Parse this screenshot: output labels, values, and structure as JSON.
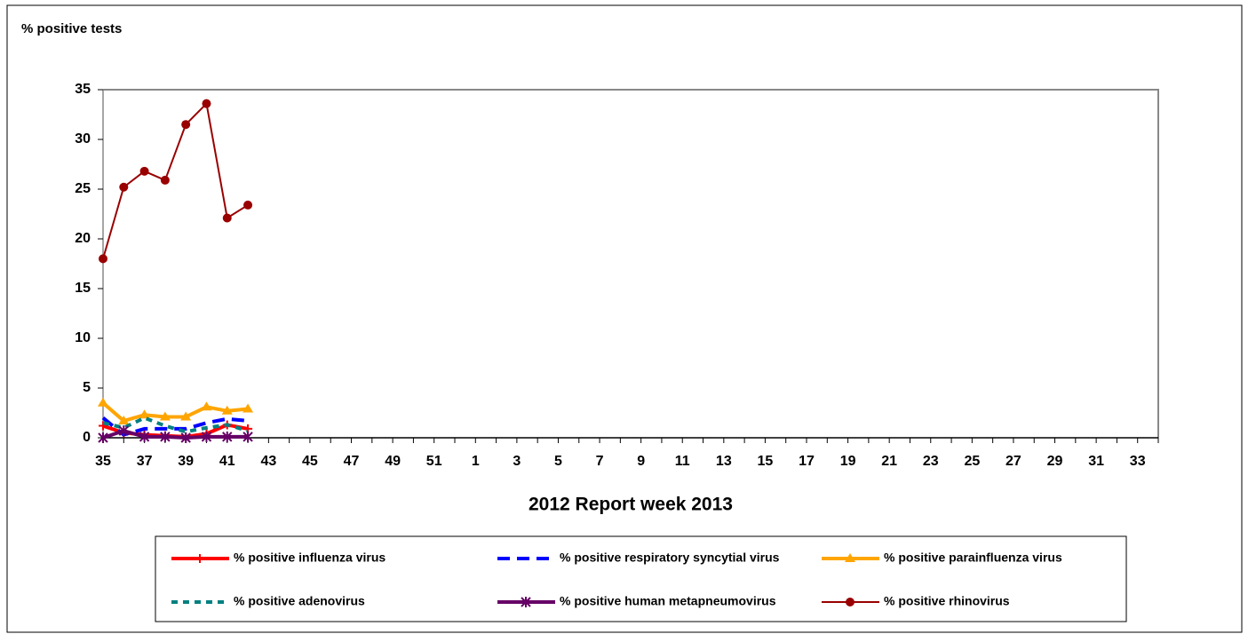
{
  "chart_data": {
    "type": "line",
    "y_title": "% positive tests",
    "x_title": "2012 Report week   2013",
    "categories": [
      "35",
      null,
      "37",
      null,
      "39",
      null,
      "41",
      null,
      "43",
      null,
      "45",
      null,
      "47",
      null,
      "49",
      null,
      "51",
      null,
      "1",
      null,
      "3",
      null,
      "5",
      null,
      "7",
      null,
      "9",
      null,
      "11",
      null,
      "13",
      null,
      "15",
      null,
      "17",
      null,
      "19",
      null,
      "21",
      null,
      "23",
      null,
      "25",
      null,
      "27",
      null,
      "29",
      null,
      "31",
      null,
      "33",
      null
    ],
    "ylim": [
      0,
      35
    ],
    "yticks": [
      0,
      5,
      10,
      15,
      20,
      25,
      30,
      35
    ],
    "legend_position": "bottom",
    "series": [
      {
        "name": "% positive influenza virus",
        "color": "#ff0000",
        "marker": "plus",
        "line_style": "solid",
        "values": [
          1.2,
          0.5,
          0.3,
          0.2,
          0.1,
          0.4,
          1.3,
          0.9,
          null,
          null,
          null,
          null,
          null,
          null,
          null,
          null,
          null,
          null,
          null,
          null,
          null,
          null,
          null,
          null,
          null,
          null,
          null,
          null,
          null,
          null,
          null,
          null,
          null,
          null,
          null,
          null,
          null,
          null,
          null,
          null,
          null,
          null,
          null,
          null,
          null,
          null,
          null,
          null,
          null,
          null,
          null,
          null
        ]
      },
      {
        "name": "% positive respiratory syncytial virus",
        "color": "#0000ff",
        "marker": "none",
        "line_style": "dashed",
        "values": [
          2.0,
          0.3,
          0.9,
          0.9,
          0.9,
          1.5,
          1.9,
          1.7,
          null,
          null,
          null,
          null,
          null,
          null,
          null,
          null,
          null,
          null,
          null,
          null,
          null,
          null,
          null,
          null,
          null,
          null,
          null,
          null,
          null,
          null,
          null,
          null,
          null,
          null,
          null,
          null,
          null,
          null,
          null,
          null,
          null,
          null,
          null,
          null,
          null,
          null,
          null,
          null,
          null,
          null,
          null,
          null
        ]
      },
      {
        "name": "% positive parainfluenza virus",
        "color": "#ffa500",
        "marker": "triangle",
        "line_style": "solid",
        "values": [
          3.5,
          1.7,
          2.3,
          2.1,
          2.1,
          3.1,
          2.7,
          2.9,
          null,
          null,
          null,
          null,
          null,
          null,
          null,
          null,
          null,
          null,
          null,
          null,
          null,
          null,
          null,
          null,
          null,
          null,
          null,
          null,
          null,
          null,
          null,
          null,
          null,
          null,
          null,
          null,
          null,
          null,
          null,
          null,
          null,
          null,
          null,
          null,
          null,
          null,
          null,
          null,
          null,
          null,
          null,
          null
        ]
      },
      {
        "name": "% positive adenovirus",
        "color": "#008080",
        "marker": "none",
        "line_style": "dotted",
        "values": [
          1.5,
          1.0,
          2.0,
          1.2,
          0.6,
          1.0,
          1.3,
          0.7,
          null,
          null,
          null,
          null,
          null,
          null,
          null,
          null,
          null,
          null,
          null,
          null,
          null,
          null,
          null,
          null,
          null,
          null,
          null,
          null,
          null,
          null,
          null,
          null,
          null,
          null,
          null,
          null,
          null,
          null,
          null,
          null,
          null,
          null,
          null,
          null,
          null,
          null,
          null,
          null,
          null,
          null,
          null,
          null
        ]
      },
      {
        "name": "% positive human metapneumovirus",
        "color": "#660066",
        "marker": "star",
        "line_style": "solid",
        "values": [
          0.0,
          0.7,
          0.1,
          0.1,
          0.0,
          0.1,
          0.1,
          0.1,
          null,
          null,
          null,
          null,
          null,
          null,
          null,
          null,
          null,
          null,
          null,
          null,
          null,
          null,
          null,
          null,
          null,
          null,
          null,
          null,
          null,
          null,
          null,
          null,
          null,
          null,
          null,
          null,
          null,
          null,
          null,
          null,
          null,
          null,
          null,
          null,
          null,
          null,
          null,
          null,
          null,
          null,
          null,
          null
        ]
      },
      {
        "name": "% positive rhinovirus",
        "color": "#990000",
        "marker": "circle",
        "line_style": "thin",
        "values": [
          18.0,
          25.2,
          26.8,
          25.9,
          31.5,
          33.6,
          22.1,
          23.4,
          null,
          null,
          null,
          null,
          null,
          null,
          null,
          null,
          null,
          null,
          null,
          null,
          null,
          null,
          null,
          null,
          null,
          null,
          null,
          null,
          null,
          null,
          null,
          null,
          null,
          null,
          null,
          null,
          null,
          null,
          null,
          null,
          null,
          null,
          null,
          null,
          null,
          null,
          null,
          null,
          null,
          null,
          null,
          null
        ]
      }
    ]
  }
}
